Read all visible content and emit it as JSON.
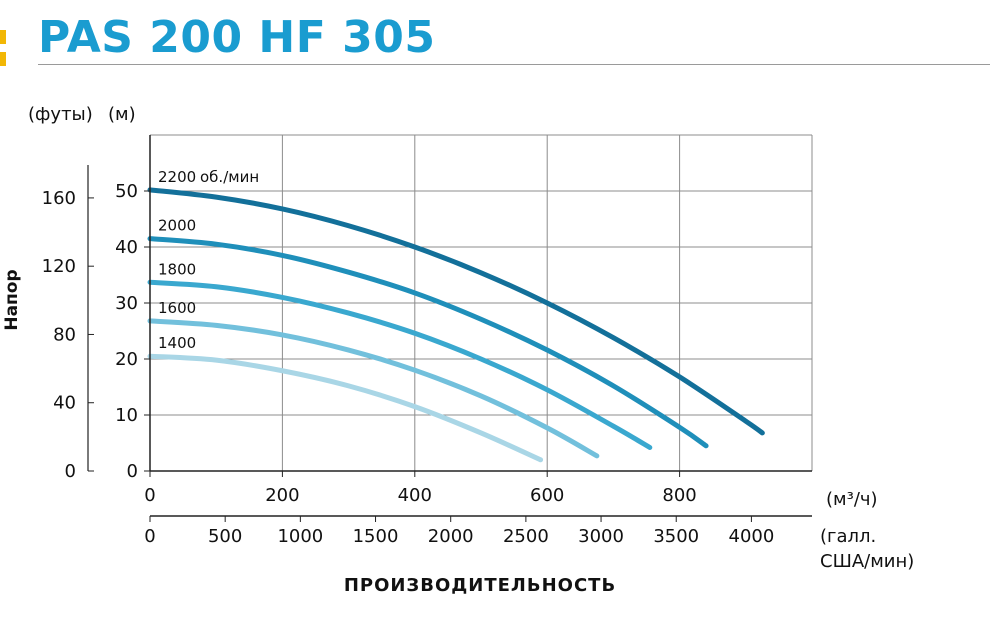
{
  "header": {
    "title": "PAS 200 HF 305",
    "accent_color": "#1a9cd0"
  },
  "chart_data": {
    "type": "line",
    "xlabel": "ПРОИЗВОДИТЕЛЬНОСТЬ",
    "ylabel": "Напор",
    "y_unit_primary": "(м)",
    "y_unit_secondary": "(футы)",
    "x_unit_primary": "(м³/ч)",
    "x_unit_secondary_line1": "(галл.",
    "x_unit_secondary_line2": "США/мин)",
    "xlim": [
      0,
      1000
    ],
    "ylim": [
      0,
      60
    ],
    "x_ticks_primary": [
      0,
      200,
      400,
      600,
      800
    ],
    "x_ticks_secondary": [
      0,
      500,
      1000,
      1500,
      2000,
      2500,
      3000,
      3500,
      4000
    ],
    "x_secondary_factor": 4.403,
    "y_ticks_primary": [
      0,
      10,
      20,
      30,
      40,
      50
    ],
    "y_ticks_secondary": [
      0,
      40,
      80,
      120,
      160
    ],
    "y_secondary_factor": 3.281,
    "grid": true,
    "series": [
      {
        "name": "1400",
        "color": "#a9d6e6",
        "x": [
          0,
          100,
          200,
          300,
          400,
          500,
          590
        ],
        "y": [
          20.5,
          19.8,
          17.9,
          15.2,
          11.5,
          6.8,
          2.0
        ]
      },
      {
        "name": "1600",
        "color": "#72c0dc",
        "x": [
          0,
          100,
          200,
          300,
          400,
          500,
          600,
          675
        ],
        "y": [
          26.8,
          26.0,
          24.3,
          21.6,
          18.0,
          13.4,
          7.7,
          2.7
        ]
      },
      {
        "name": "1800",
        "color": "#3aa8cf",
        "x": [
          0,
          100,
          200,
          300,
          400,
          500,
          600,
          700,
          755
        ],
        "y": [
          33.7,
          32.9,
          31.0,
          28.2,
          24.6,
          20.0,
          14.5,
          8.0,
          4.2
        ]
      },
      {
        "name": "2000",
        "color": "#1f8fba",
        "x": [
          0,
          100,
          200,
          300,
          400,
          500,
          600,
          700,
          800,
          840
        ],
        "y": [
          41.5,
          40.5,
          38.5,
          35.5,
          31.8,
          27.1,
          21.6,
          15.2,
          7.8,
          4.5
        ]
      },
      {
        "name": "2200",
        "color": "#13709a",
        "x": [
          0,
          100,
          200,
          300,
          400,
          500,
          600,
          700,
          800,
          900,
          925
        ],
        "y": [
          50.2,
          48.9,
          46.8,
          43.8,
          40.0,
          35.4,
          30.0,
          23.8,
          16.8,
          8.9,
          6.8
        ]
      }
    ],
    "annotations": [
      {
        "series": "2200",
        "text": "2200",
        "suffix": "об./мин"
      },
      {
        "series": "2000",
        "text": "2000"
      },
      {
        "series": "1800",
        "text": "1800"
      },
      {
        "series": "1600",
        "text": "1600"
      },
      {
        "series": "1400",
        "text": "1400"
      }
    ]
  }
}
